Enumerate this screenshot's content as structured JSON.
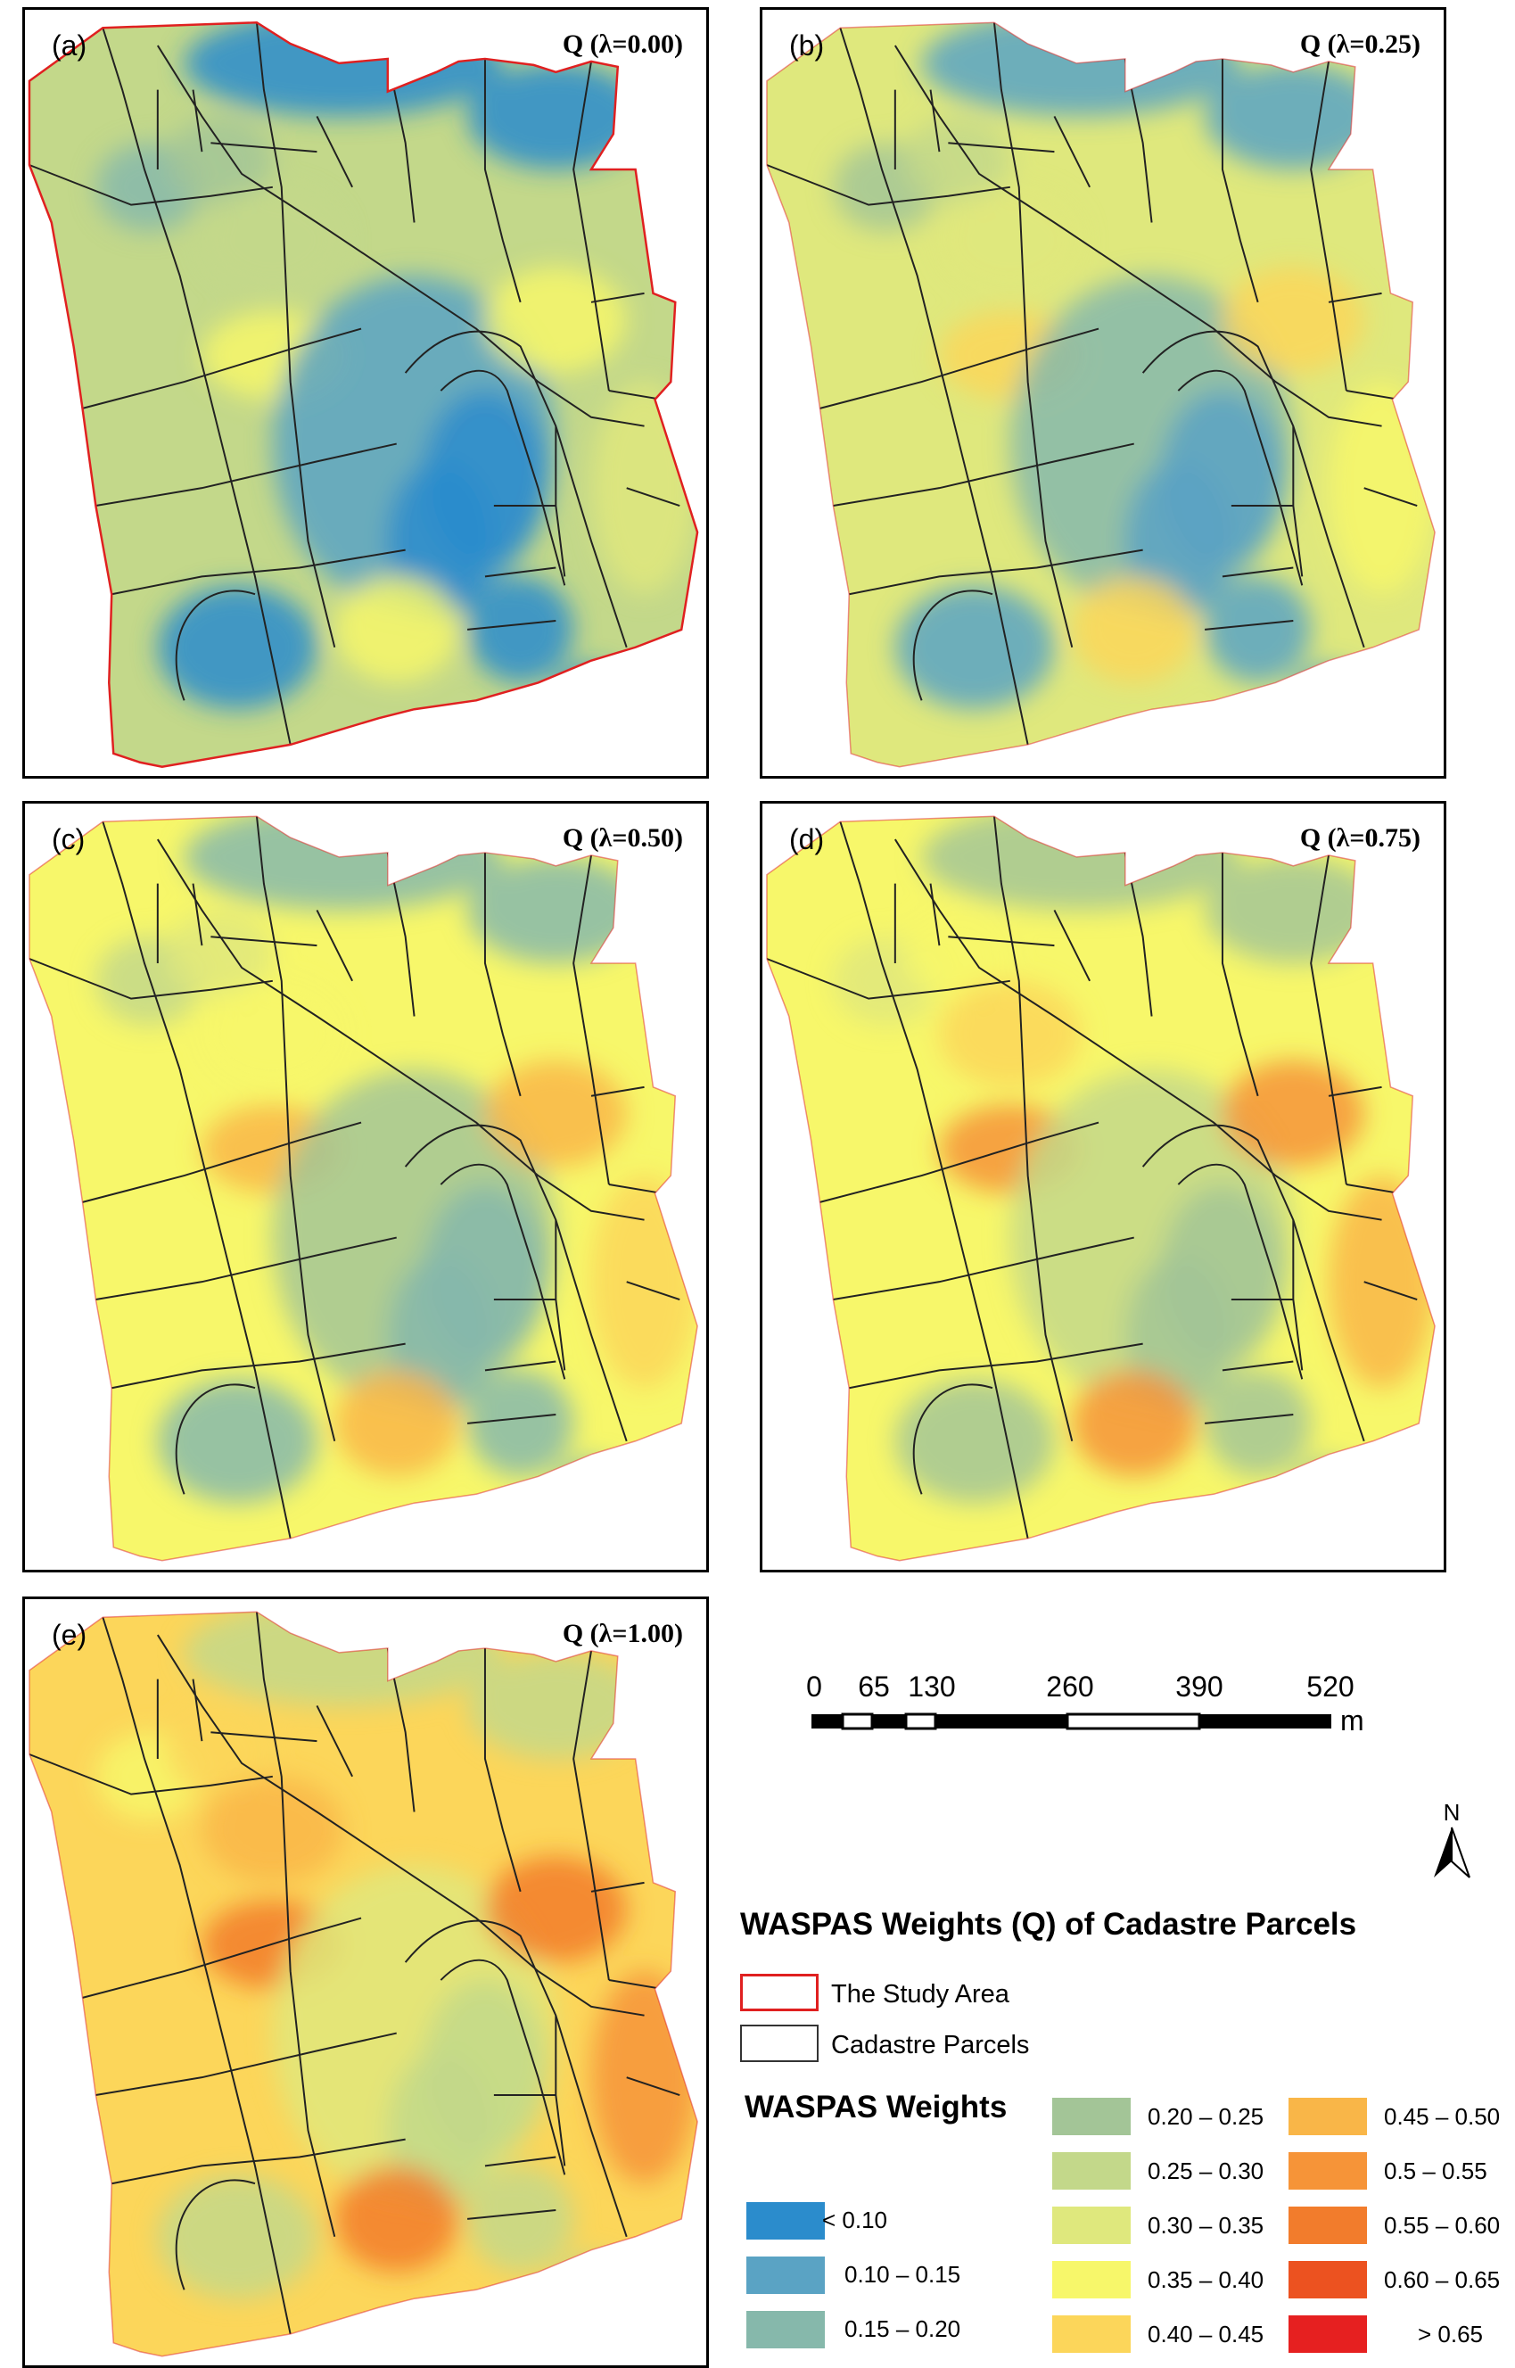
{
  "panels": [
    {
      "id": "a",
      "label": "(a)",
      "title": "Q (λ=0.00)",
      "shift": 0
    },
    {
      "id": "b",
      "label": "(b)",
      "title": "Q (λ=0.25)",
      "shift": 1
    },
    {
      "id": "c",
      "label": "(c)",
      "title": "Q (λ=0.50)",
      "shift": 2
    },
    {
      "id": "d",
      "label": "(d)",
      "title": "Q (λ=0.75)",
      "shift": 3
    },
    {
      "id": "e",
      "label": "(e)",
      "title": "Q (λ=1.00)",
      "shift": 4
    }
  ],
  "scalebar": {
    "ticks": [
      "0",
      "65",
      "130",
      "260",
      "390",
      "520"
    ],
    "unit": "m"
  },
  "north": {
    "label": "N"
  },
  "legend": {
    "title": "WASPAS Weights (Q) of Cadastre Parcels",
    "study_area": {
      "label": "The Study Area",
      "color": "#e02020"
    },
    "parcels": {
      "label": "Cadastre Parcels",
      "color": "#333333"
    },
    "weights_title": "WASPAS Weights",
    "classes": [
      {
        "label": "< 0.10",
        "color": "#2b8ccc"
      },
      {
        "label": "0.10 – 0.15",
        "color": "#5aa3c4"
      },
      {
        "label": "0.15 – 0.20",
        "color": "#86b8ab"
      },
      {
        "label": "0.20 – 0.25",
        "color": "#a3c597"
      },
      {
        "label": "0.25 – 0.30",
        "color": "#c3d88a"
      },
      {
        "label": "0.30 – 0.35",
        "color": "#dfe87d"
      },
      {
        "label": "0.35 – 0.40",
        "color": "#f7f76a"
      },
      {
        "label": "0.40 – 0.45",
        "color": "#fcd65a"
      },
      {
        "label": "0.45 – 0.50",
        "color": "#f9b648"
      },
      {
        "label": "0.5 – 0.55",
        "color": "#f69438"
      },
      {
        "label": "0.55 – 0.60",
        "color": "#f27c2c"
      },
      {
        "label": "0.60 – 0.65",
        "color": "#ec5220"
      },
      {
        "label": "> 0.65",
        "color": "#e62020"
      }
    ]
  }
}
